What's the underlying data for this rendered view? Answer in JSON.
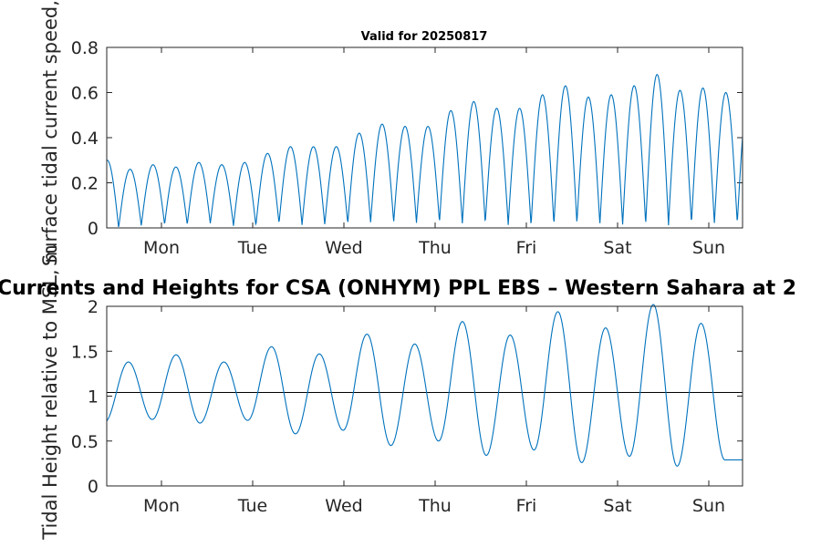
{
  "chart_data": [
    {
      "type": "line",
      "title": "Valid for 20250817",
      "ylabel": "Surface tidal current speed, kn",
      "ylim": [
        0,
        0.8
      ],
      "yticks": [
        0,
        0.2,
        0.4,
        0.6,
        0.8
      ],
      "xticks": [
        "Mon",
        "Tue",
        "Wed",
        "Thu",
        "Fri",
        "Sat",
        "Sun"
      ],
      "xrange_days": [
        -0.6,
        6.37
      ],
      "grid": false,
      "series_color": "#0072BD",
      "series": [
        {
          "cycle": "semidiurnal half-periods (flood/ebb speed peaks)",
          "peaks": [
            0.3,
            0.26,
            0.28,
            0.27,
            0.29,
            0.28,
            0.29,
            0.33,
            0.36,
            0.36,
            0.36,
            0.42,
            0.46,
            0.45,
            0.45,
            0.52,
            0.56,
            0.53,
            0.53,
            0.59,
            0.63,
            0.58,
            0.59,
            0.63,
            0.68,
            0.61,
            0.62,
            0.6
          ],
          "troughs": [
            0.0,
            0.0,
            0.02,
            0.01,
            0.02,
            0.02,
            0.0,
            0.02,
            0.02,
            0.01,
            0.02,
            0.02,
            0.03,
            0.02,
            0.03,
            0.02,
            0.02,
            0.02,
            0.01,
            0.01,
            0.02,
            0.02,
            0.01,
            0.02,
            0.01,
            0.02,
            0.02
          ]
        }
      ]
    },
    {
      "type": "line",
      "title": "Currents and Heights for CSA (ONHYM) PPL EBS  – Western Sahara at 2",
      "ylabel": "Tidal Height relative to MSL, m",
      "ylim": [
        0,
        2
      ],
      "yticks": [
        0,
        0.5,
        1,
        1.5,
        2
      ],
      "xticks": [
        "Mon",
        "Tue",
        "Wed",
        "Thu",
        "Fri",
        "Sat",
        "Sun"
      ],
      "xrange_days": [
        -0.6,
        6.37
      ],
      "grid": false,
      "reference_line": 1.04,
      "series_color": "#0072BD",
      "series": [
        {
          "cycle": "semidiurnal high/low waters",
          "highs": [
            1.38,
            1.46,
            1.38,
            1.55,
            1.47,
            1.69,
            1.58,
            1.83,
            1.68,
            1.94,
            1.76,
            2.02,
            1.81
          ],
          "lows": [
            0.71,
            0.74,
            0.7,
            0.73,
            0.58,
            0.62,
            0.45,
            0.5,
            0.34,
            0.4,
            0.26,
            0.33,
            0.22,
            0.29
          ]
        }
      ]
    }
  ]
}
